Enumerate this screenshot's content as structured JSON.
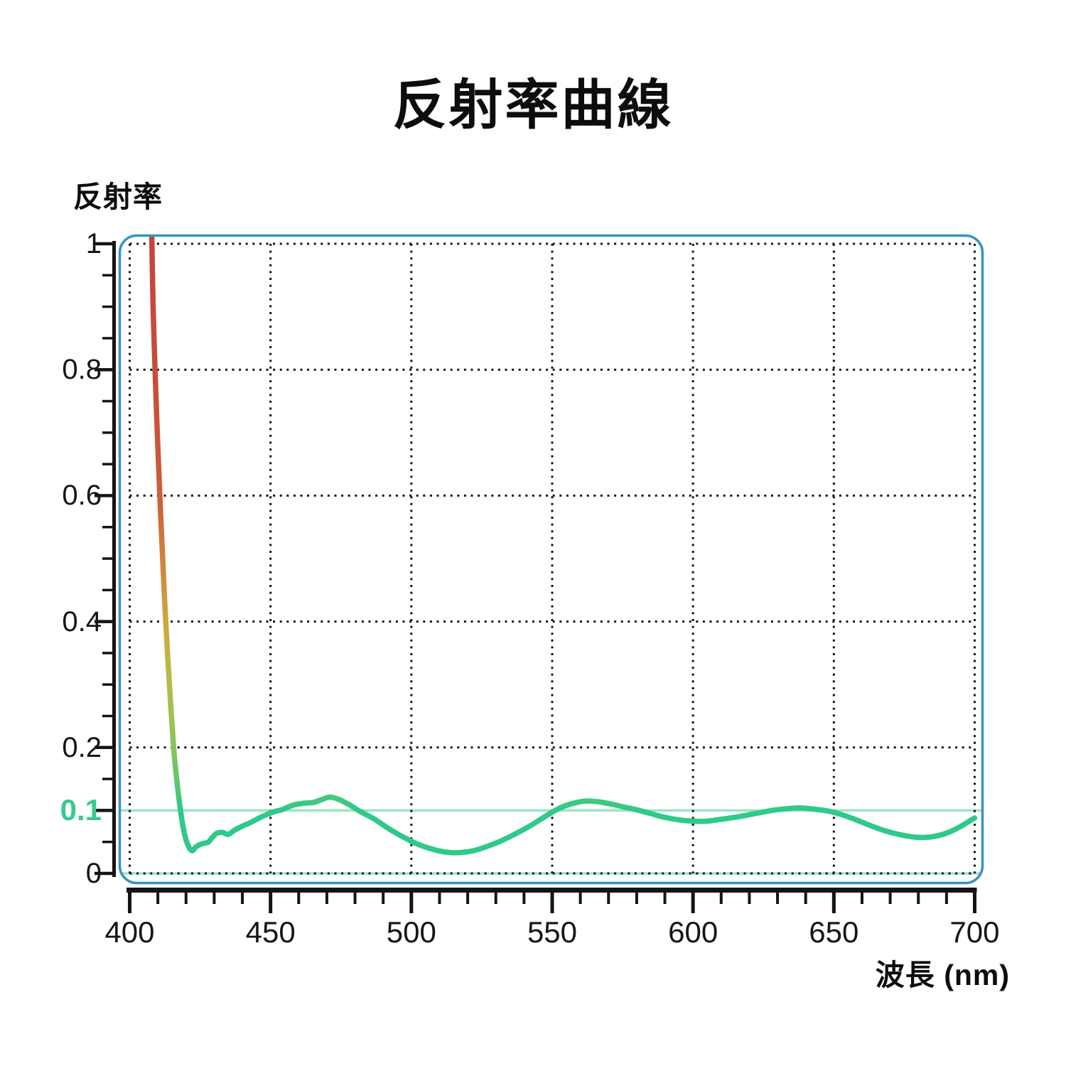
{
  "title": "反射率曲線",
  "chart_data": {
    "type": "line",
    "title": "反射率曲線",
    "xlabel": "波長 (nm)",
    "ylabel": "反射率",
    "xlim": [
      400,
      700
    ],
    "ylim": [
      0,
      1
    ],
    "grid": {
      "style": "dotted",
      "color": "#161616",
      "x_values": [
        400,
        450,
        500,
        550,
        600,
        650,
        700
      ],
      "y_values": [
        0,
        0.2,
        0.4,
        0.6,
        0.8,
        1
      ]
    },
    "x_ticks": {
      "major": [
        400,
        450,
        500,
        550,
        600,
        650,
        700
      ],
      "labels": [
        "400",
        "450",
        "500",
        "550",
        "600",
        "650",
        "700"
      ],
      "minor_step": 10
    },
    "y_ticks": {
      "major": [
        1,
        0.8,
        0.6,
        0.4,
        0.2,
        0.1,
        0
      ],
      "labels": [
        "1",
        "0.8",
        "0.6",
        "0.4",
        "0.2",
        "0.1",
        "0"
      ],
      "minor_step": 0.05,
      "highlighted_value": 0.1,
      "highlight_color": "#38c98c"
    },
    "reference_lines": [
      {
        "y": 0.1,
        "color": "#9de5c3"
      },
      {
        "y": 0,
        "color": "#9de5c3"
      }
    ],
    "frame_color": "#3793c4",
    "axis_color": "#141414",
    "series": [
      {
        "name": "反射率",
        "base_color": "#2fc98b",
        "gradient_by_y": [
          {
            "offset": 0.0,
            "color": "#c5443b"
          },
          {
            "offset": 0.22,
            "color": "#c74c39"
          },
          {
            "offset": 0.45,
            "color": "#cc5f3a"
          },
          {
            "offset": 0.56,
            "color": "#d0823c"
          },
          {
            "offset": 0.67,
            "color": "#cda83e"
          },
          {
            "offset": 0.78,
            "color": "#b3bd4a"
          },
          {
            "offset": 0.89,
            "color": "#8bc45b"
          },
          {
            "offset": 0.96,
            "color": "#54c873"
          },
          {
            "offset": 1.0,
            "color": "#2fc98b"
          }
        ],
        "points": [
          [
            407.8,
            1.03
          ],
          [
            408.3,
            0.9
          ],
          [
            409.0,
            0.8
          ],
          [
            409.8,
            0.7
          ],
          [
            410.7,
            0.6
          ],
          [
            411.7,
            0.5
          ],
          [
            412.8,
            0.4
          ],
          [
            414.1,
            0.3
          ],
          [
            415.6,
            0.2
          ],
          [
            416.8,
            0.145
          ],
          [
            418.2,
            0.095
          ],
          [
            419.6,
            0.06
          ],
          [
            421.0,
            0.042
          ],
          [
            422.2,
            0.036
          ],
          [
            423.5,
            0.042
          ],
          [
            425.0,
            0.046
          ],
          [
            426.5,
            0.048
          ],
          [
            428.0,
            0.05
          ],
          [
            429.5,
            0.058
          ],
          [
            431.0,
            0.064
          ],
          [
            433.0,
            0.065
          ],
          [
            435.0,
            0.062
          ],
          [
            437.0,
            0.068
          ],
          [
            440.0,
            0.075
          ],
          [
            443.0,
            0.081
          ],
          [
            446.0,
            0.088
          ],
          [
            449.0,
            0.094
          ],
          [
            452.0,
            0.099
          ],
          [
            454.0,
            0.101
          ],
          [
            456.0,
            0.105
          ],
          [
            458.5,
            0.109
          ],
          [
            461.0,
            0.111
          ],
          [
            463.0,
            0.112
          ],
          [
            465.5,
            0.113
          ],
          [
            468.0,
            0.117
          ],
          [
            471.0,
            0.121
          ],
          [
            474.0,
            0.118
          ],
          [
            478.0,
            0.109
          ],
          [
            482.0,
            0.098
          ],
          [
            487.0,
            0.086
          ],
          [
            492.0,
            0.071
          ],
          [
            497.0,
            0.058
          ],
          [
            502.0,
            0.047
          ],
          [
            507.0,
            0.039
          ],
          [
            512.0,
            0.034
          ],
          [
            517.0,
            0.033
          ],
          [
            522.0,
            0.036
          ],
          [
            527.0,
            0.043
          ],
          [
            532.0,
            0.052
          ],
          [
            537.0,
            0.063
          ],
          [
            542.0,
            0.075
          ],
          [
            547.0,
            0.089
          ],
          [
            551.0,
            0.1
          ],
          [
            555.0,
            0.108
          ],
          [
            559.0,
            0.113
          ],
          [
            562.0,
            0.115
          ],
          [
            566.0,
            0.114
          ],
          [
            570.0,
            0.111
          ],
          [
            575.0,
            0.106
          ],
          [
            580.0,
            0.101
          ],
          [
            585.0,
            0.095
          ],
          [
            590.0,
            0.089
          ],
          [
            595.0,
            0.085
          ],
          [
            600.0,
            0.083
          ],
          [
            605.0,
            0.083
          ],
          [
            610.0,
            0.086
          ],
          [
            616.0,
            0.09
          ],
          [
            622.0,
            0.095
          ],
          [
            628.0,
            0.1
          ],
          [
            634.0,
            0.103
          ],
          [
            638.0,
            0.104
          ],
          [
            643.0,
            0.102
          ],
          [
            648.0,
            0.099
          ],
          [
            653.0,
            0.093
          ],
          [
            658.0,
            0.085
          ],
          [
            663.0,
            0.076
          ],
          [
            668.0,
            0.068
          ],
          [
            673.0,
            0.062
          ],
          [
            678.0,
            0.058
          ],
          [
            682.0,
            0.057
          ],
          [
            686.0,
            0.059
          ],
          [
            690.0,
            0.064
          ],
          [
            694.0,
            0.072
          ],
          [
            697.0,
            0.08
          ],
          [
            700.0,
            0.088
          ]
        ]
      }
    ],
    "legend": null
  }
}
